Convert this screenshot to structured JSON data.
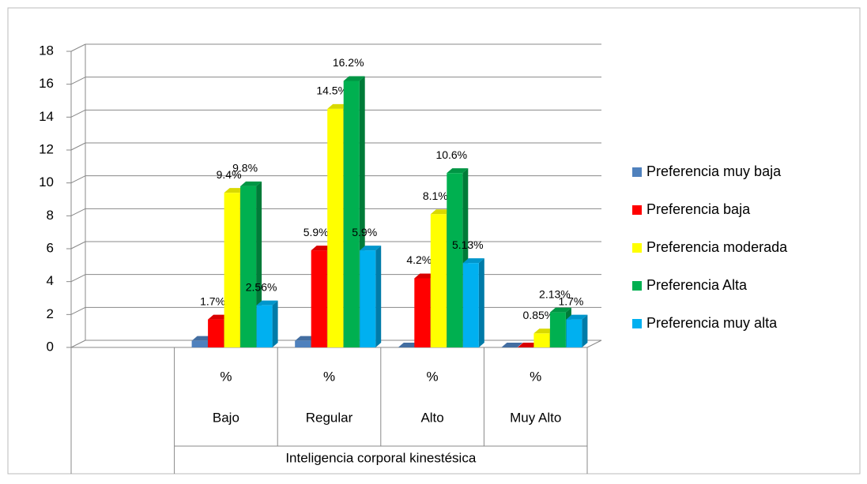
{
  "chart_data": {
    "type": "bar3d",
    "categories": [
      null,
      "Bajo",
      "Regular",
      "Alto",
      "Muy Alto"
    ],
    "subcategories": [
      null,
      "%",
      "%",
      "%",
      "%"
    ],
    "x_label": "Inteligencia corporal kinestésica",
    "ylim": [
      0,
      18
    ],
    "yticks": [
      0,
      2,
      4,
      6,
      8,
      10,
      12,
      14,
      16,
      18
    ],
    "grid": true,
    "legend": "right",
    "series": [
      {
        "name": "Preferencia muy baja",
        "color": "#4f81bd",
        "values": [
          null,
          0.4,
          0.4,
          0,
          0
        ],
        "value_labels": [
          null,
          null,
          null,
          null,
          null
        ]
      },
      {
        "name": "Preferencia baja",
        "color": "#ff0000",
        "values": [
          null,
          1.7,
          5.9,
          4.2,
          0
        ],
        "value_labels": [
          null,
          "1.7%",
          "5.9%",
          "4.2%",
          null
        ]
      },
      {
        "name": "Preferencia moderada",
        "color": "#ffff00",
        "values": [
          null,
          9.4,
          14.5,
          8.1,
          0.85
        ],
        "value_labels": [
          null,
          "9.4%",
          "14.5%",
          "8.1%",
          "0.85%"
        ]
      },
      {
        "name": "Preferencia Alta",
        "color": "#00b050",
        "values": [
          null,
          9.8,
          16.2,
          10.6,
          2.13
        ],
        "value_labels": [
          null,
          "9.8%",
          "16.2%",
          "10.6%",
          "2.13%"
        ]
      },
      {
        "name": "Preferencia muy alta",
        "color": "#00b0f0",
        "values": [
          null,
          2.56,
          5.9,
          5.13,
          1.7
        ],
        "value_labels": [
          null,
          "2.56%",
          "5.9%",
          "5.13%",
          "1.7%"
        ]
      }
    ]
  }
}
